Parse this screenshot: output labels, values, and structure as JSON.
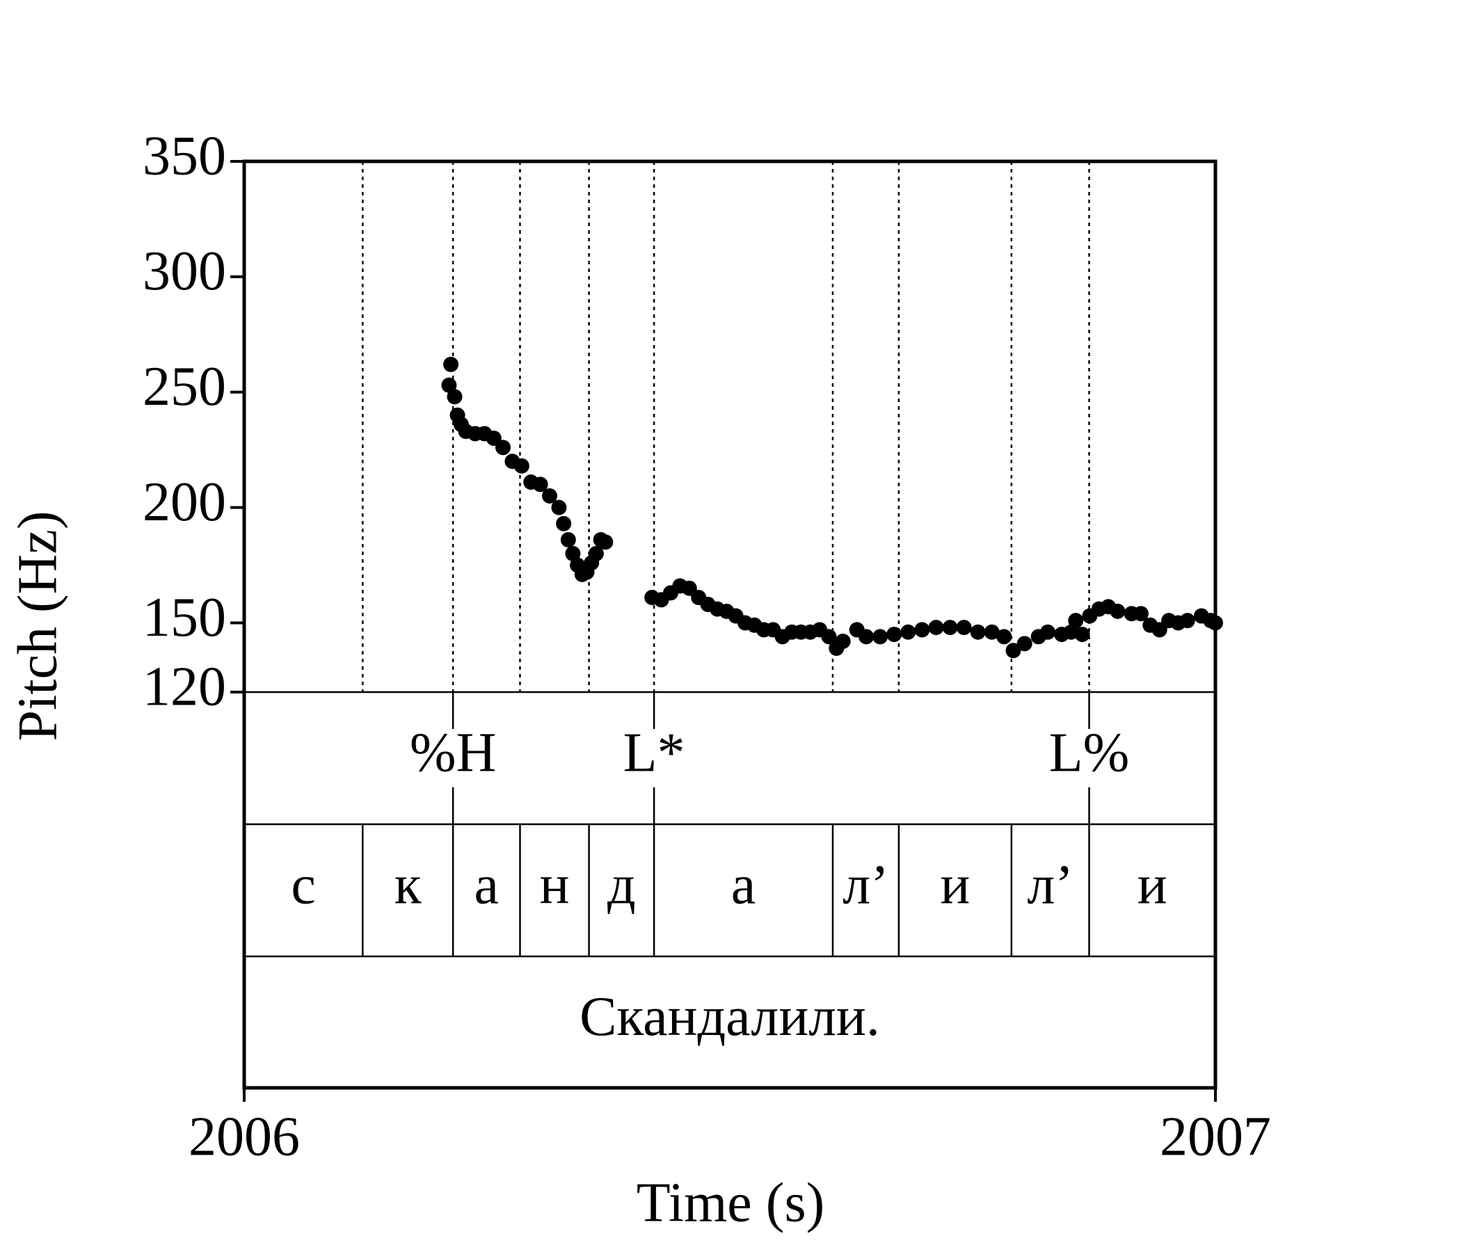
{
  "chart_data": {
    "type": "scatter",
    "xlabel": "Time (s)",
    "ylabel": "Pitch (Hz)",
    "xlim": [
      2006,
      2007
    ],
    "xticks": [
      2006,
      2007
    ],
    "ylim": [
      120,
      350
    ],
    "yticks": [
      120,
      150,
      200,
      250,
      300,
      350
    ],
    "x": [
      2006.2109,
      2006.2128,
      2006.2167,
      2006.2196,
      2006.2234,
      2006.2282,
      2006.2378,
      2006.2474,
      2006.257,
      2006.2665,
      2006.2761,
      2006.2857,
      2006.2953,
      2006.3049,
      2006.3145,
      2006.3241,
      2006.3289,
      2006.3337,
      2006.3384,
      2006.3432,
      2006.348,
      2006.3528,
      2006.3576,
      2006.3624,
      2006.3672,
      2006.372,
      2006.4199,
      2006.4295,
      2006.4391,
      2006.4487,
      2006.4583,
      2006.4679,
      2006.4775,
      2006.4871,
      2006.4967,
      2006.5062,
      2006.5158,
      2006.5254,
      2006.535,
      2006.5446,
      2006.5542,
      2006.5638,
      2006.5733,
      2006.5829,
      2006.5925,
      2006.6021,
      2006.6098,
      2006.6165,
      2006.6309,
      2006.6405,
      2006.6548,
      2006.6692,
      2006.6836,
      2006.698,
      2006.7124,
      2006.7268,
      2006.7411,
      2006.7555,
      2006.7699,
      2006.7824,
      2006.7919,
      2006.8035,
      2006.8178,
      2006.8274,
      2006.8418,
      2006.8514,
      2006.8562,
      2006.8629,
      2006.8706,
      2006.8802,
      2006.8897,
      2006.8993,
      2006.9137,
      2006.9233,
      2006.9329,
      2006.9425,
      2006.9521,
      2006.9617,
      2006.9712,
      2006.9856,
      2006.9952,
      2007.0
    ],
    "series": [
      {
        "color": "#000000",
        "values": [
          253,
          262,
          248,
          240,
          236,
          233,
          232,
          232,
          230,
          226,
          220,
          218,
          211,
          210,
          205,
          200,
          193,
          186,
          180,
          175,
          171,
          172,
          176,
          180,
          186,
          185,
          161,
          160,
          163,
          166,
          165,
          161,
          158,
          156,
          155,
          153,
          150,
          149,
          147,
          147,
          144,
          146,
          146,
          146,
          147,
          144,
          139,
          142,
          147,
          144,
          144,
          145,
          146,
          147,
          148,
          148,
          148,
          146,
          146,
          144,
          138,
          141,
          144,
          146,
          145,
          146,
          151,
          145,
          153,
          156,
          157,
          155,
          154,
          154,
          149,
          147,
          151,
          150,
          151,
          153,
          151,
          150
        ]
      }
    ],
    "tone_tier": {
      "times": [
        2006.215,
        2006.422,
        2006.87
      ],
      "labels": [
        "%H",
        "L*",
        "L%"
      ]
    },
    "segment_tier": {
      "boundaries": [
        2006.122,
        2006.215,
        2006.284,
        2006.355,
        2006.422,
        2006.606,
        2006.674,
        2006.79,
        2006.87
      ],
      "labels": [
        "с",
        "к",
        "а",
        "н",
        "д",
        "а",
        "л’",
        "и",
        "л’",
        "и"
      ]
    },
    "word_tier": {
      "labels": [
        "Скандалили."
      ]
    }
  }
}
